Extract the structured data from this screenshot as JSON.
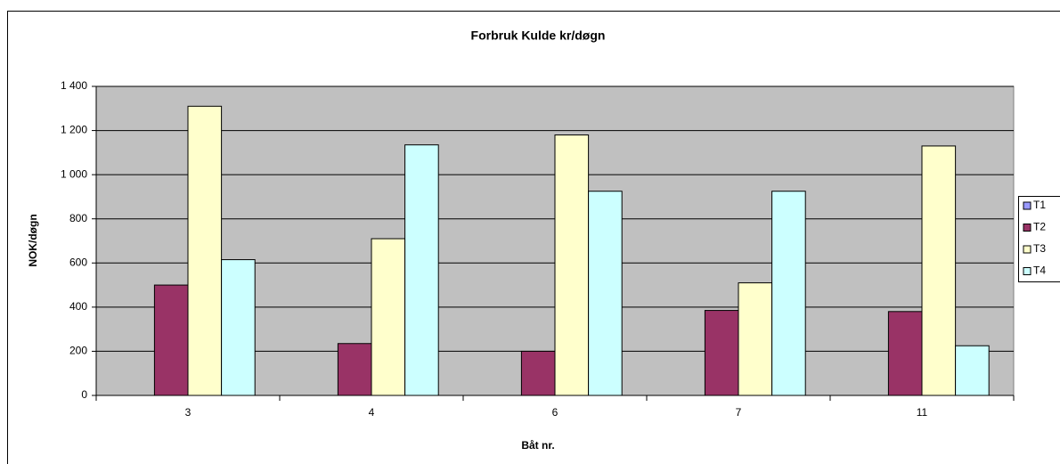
{
  "chart_data": {
    "type": "bar",
    "title": "Forbruk Kulde kr/døgn",
    "x_label": "Båt nr.",
    "y_label": "NOK/døgn",
    "categories": [
      "3",
      "4",
      "6",
      "7",
      "11"
    ],
    "series": [
      {
        "name": "T1",
        "color": "#9999ff",
        "values": [
          0,
          0,
          0,
          0,
          0
        ]
      },
      {
        "name": "T2",
        "color": "#993366",
        "values": [
          500,
          235,
          200,
          385,
          380
        ]
      },
      {
        "name": "T3",
        "color": "#ffffcc",
        "values": [
          1310,
          710,
          1180,
          510,
          1130
        ]
      },
      {
        "name": "T4",
        "color": "#ccffff",
        "values": [
          615,
          1135,
          925,
          925,
          225
        ]
      }
    ],
    "ylim": [
      0,
      1400
    ],
    "yticks": [
      0,
      200,
      400,
      600,
      800,
      {
        "value": 1000,
        "label": "1 000"
      },
      {
        "value": 1200,
        "label": "1 200"
      },
      {
        "value": 1400,
        "label": "1 400"
      }
    ],
    "grid": true,
    "legend": "right",
    "plot_background": "#c0c0c0"
  }
}
